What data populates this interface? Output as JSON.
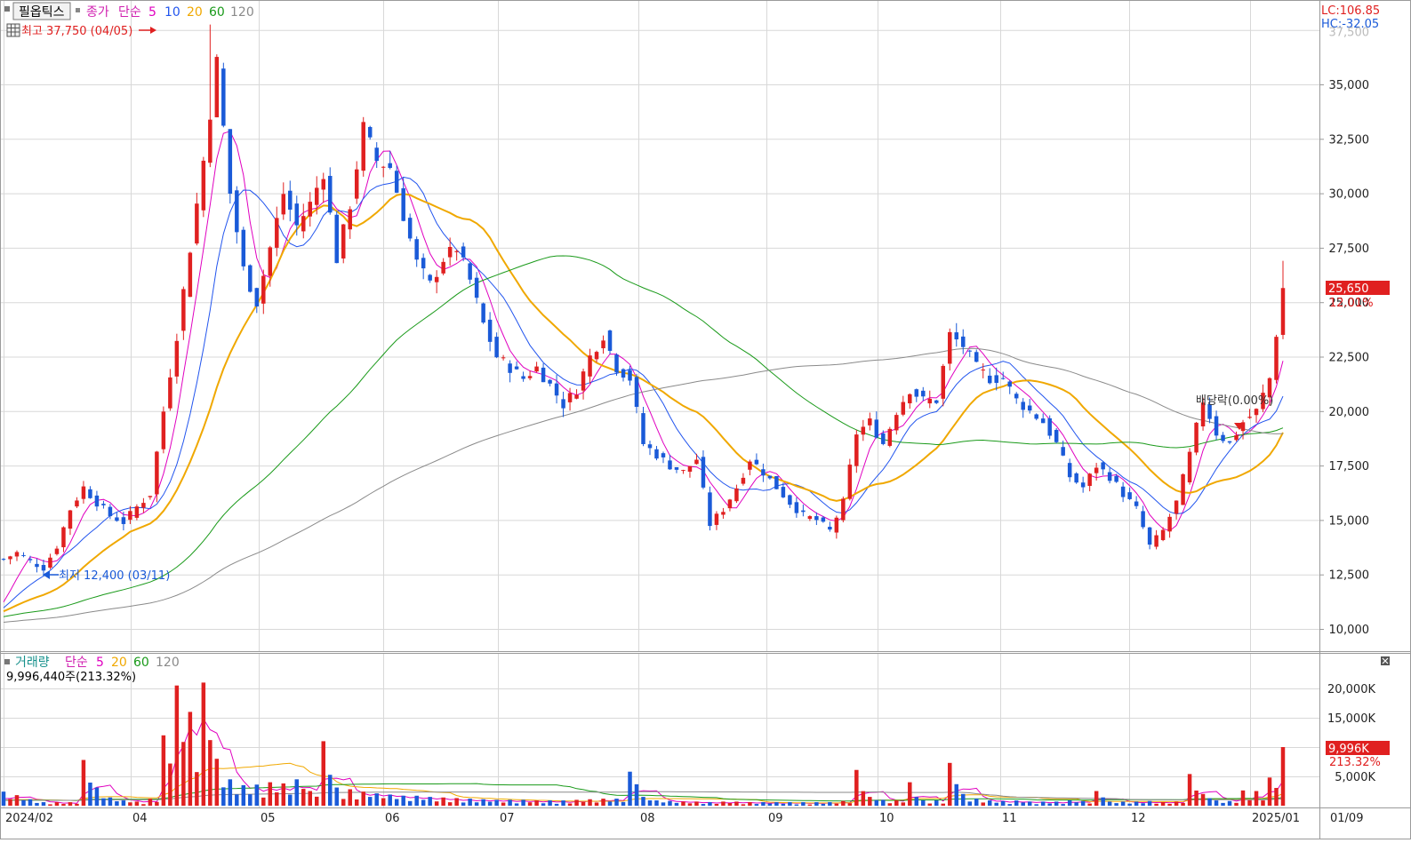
{
  "price_header": {
    "title": "필옵틱스",
    "price_label": "종가",
    "ma_label": "단순",
    "ma_periods": [
      "5",
      "10",
      "20",
      "60",
      "120"
    ],
    "ma_colors": [
      "#e000c0",
      "#2255ee",
      "#f0a800",
      "#1a9a1a",
      "#8a8a8a"
    ]
  },
  "volume_header": {
    "title": "거래량",
    "ma_label": "단순",
    "ma_periods": [
      "5",
      "20",
      "60",
      "120"
    ],
    "ma_colors": [
      "#e000c0",
      "#f0a800",
      "#1a9a1a",
      "#8a8a8a"
    ],
    "current_text": "9,996,440주(213.32%)"
  },
  "corner_info": {
    "lc": "LC:106.85",
    "hc": "HC:-32.05"
  },
  "annotations": {
    "high": "최고 37,750 (04/05)",
    "low": "최저 12,400 (03/11)",
    "dividend": "배당락(0.00%)"
  },
  "price_axis": {
    "ticks": [
      "10,000",
      "12,500",
      "15,000",
      "17,500",
      "20,000",
      "22,500",
      "25,000",
      "27,500",
      "30,000",
      "32,500",
      "35,000"
    ],
    "top_partial": "37,500",
    "current_value": "25,650",
    "current_change": "12.01%"
  },
  "volume_axis": {
    "ticks": [
      "5,000K",
      "10,000K",
      "15,000K",
      "20,000K"
    ],
    "current_value": "9,996K",
    "current_change": "213.32%"
  },
  "x_axis": [
    "2024/02",
    "04",
    "05",
    "06",
    "07",
    "08",
    "09",
    "10",
    "11",
    "12",
    "2025/01",
    "01/09"
  ],
  "colors": {
    "up": "#e02020",
    "down": "#1a5ad8",
    "grid": "#d8d8d8"
  },
  "chart_data": {
    "type": "candlestick",
    "title": "필옵틱스",
    "price_ylim": [
      9000,
      38000
    ],
    "volume_ylim": [
      0,
      22500
    ],
    "volume_unit": "K",
    "highest": {
      "value": 37750,
      "date": "04/05"
    },
    "lowest": {
      "value": 12400,
      "date": "03/11"
    },
    "last_close": 25650,
    "last_change_pct": 12.01,
    "last_volume_k": 9996,
    "price_path": [
      13200,
      13500,
      13100,
      12800,
      13800,
      15500,
      16500,
      15800,
      15200,
      14900,
      15600,
      16200,
      20000,
      23500,
      27500,
      31500,
      36000,
      30000,
      26500,
      25000,
      27500,
      30000,
      28500,
      29500,
      31000,
      27000,
      29500,
      33000,
      31500,
      31200,
      29000,
      26800,
      25800,
      27000,
      27500,
      26000,
      24000,
      22500,
      22000,
      21500,
      22000,
      21200,
      20300,
      21000,
      22500,
      23500,
      22000,
      21500,
      18500,
      18000,
      17500,
      17200,
      17800,
      14800,
      15500,
      16500,
      17800,
      17200,
      16500,
      15800,
      15200,
      15000,
      14500,
      15800,
      19000,
      19500,
      18500,
      20000,
      21000,
      20500,
      20500,
      23500,
      23000,
      22000,
      21500,
      21500,
      20500,
      20000,
      19500,
      18500,
      17000,
      16500,
      17500,
      17000,
      16200,
      15500,
      13800,
      14500,
      15800,
      18000,
      20500,
      19000,
      18500,
      19500,
      20000,
      21500,
      25650
    ],
    "volume_k": [
      2400,
      1800,
      1100,
      600,
      600,
      600,
      7800,
      3100,
      1400,
      900,
      700,
      1200,
      12000,
      20500,
      16000,
      21000,
      8000,
      4500,
      3500,
      3600,
      4000,
      3800,
      4500,
      2500,
      11000,
      3100,
      2800,
      2400,
      2100,
      1900,
      1700,
      1700,
      1500,
      1400,
      1300,
      1200,
      1100,
      1000,
      1000,
      1000,
      900,
      900,
      900,
      1000,
      1100,
      1200,
      1200,
      5800,
      1500,
      900,
      800,
      700,
      700,
      600,
      700,
      700,
      600,
      600,
      600,
      600,
      600,
      600,
      600,
      800,
      6100,
      1500,
      1000,
      900,
      4000,
      900,
      900,
      7300,
      2000,
      1200,
      900,
      800,
      900,
      700,
      700,
      700,
      900,
      800,
      2500,
      700,
      700,
      700,
      800,
      600,
      700,
      5400,
      2000,
      900,
      800,
      2600,
      2500,
      4800,
      9996
    ]
  }
}
